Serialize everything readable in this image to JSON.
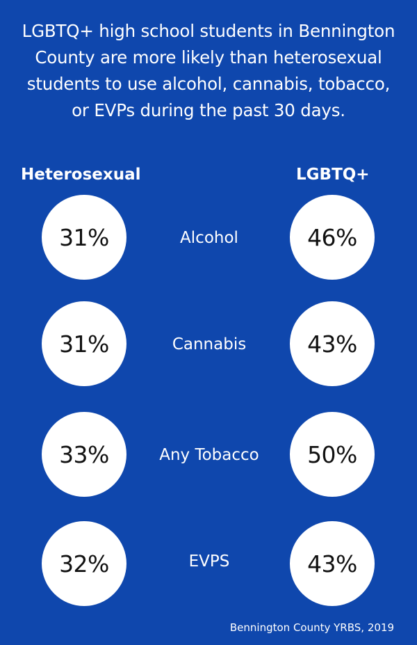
{
  "headline": "LGBTQ+ high school students in Bennington County are more likely than heterosexual students to use alcohol, cannabis, tobacco, or EVPs during the past 30 days.",
  "columns": {
    "left": "Heterosexual",
    "right": "LGBTQ+"
  },
  "rows": [
    {
      "label": "Alcohol",
      "heterosexual": "31%",
      "lgbtq": "46%"
    },
    {
      "label": "Cannabis",
      "heterosexual": "31%",
      "lgbtq": "43%"
    },
    {
      "label": "Any Tobacco",
      "heterosexual": "33%",
      "lgbtq": "50%"
    },
    {
      "label": "EVPS",
      "heterosexual": "32%",
      "lgbtq": "43%"
    }
  ],
  "source": "Bennington County YRBS, 2019",
  "colors": {
    "background": "#0f47ad",
    "circle": "#ffffff",
    "text_on_blue": "#ffffff",
    "text_on_circle": "#111111"
  }
}
